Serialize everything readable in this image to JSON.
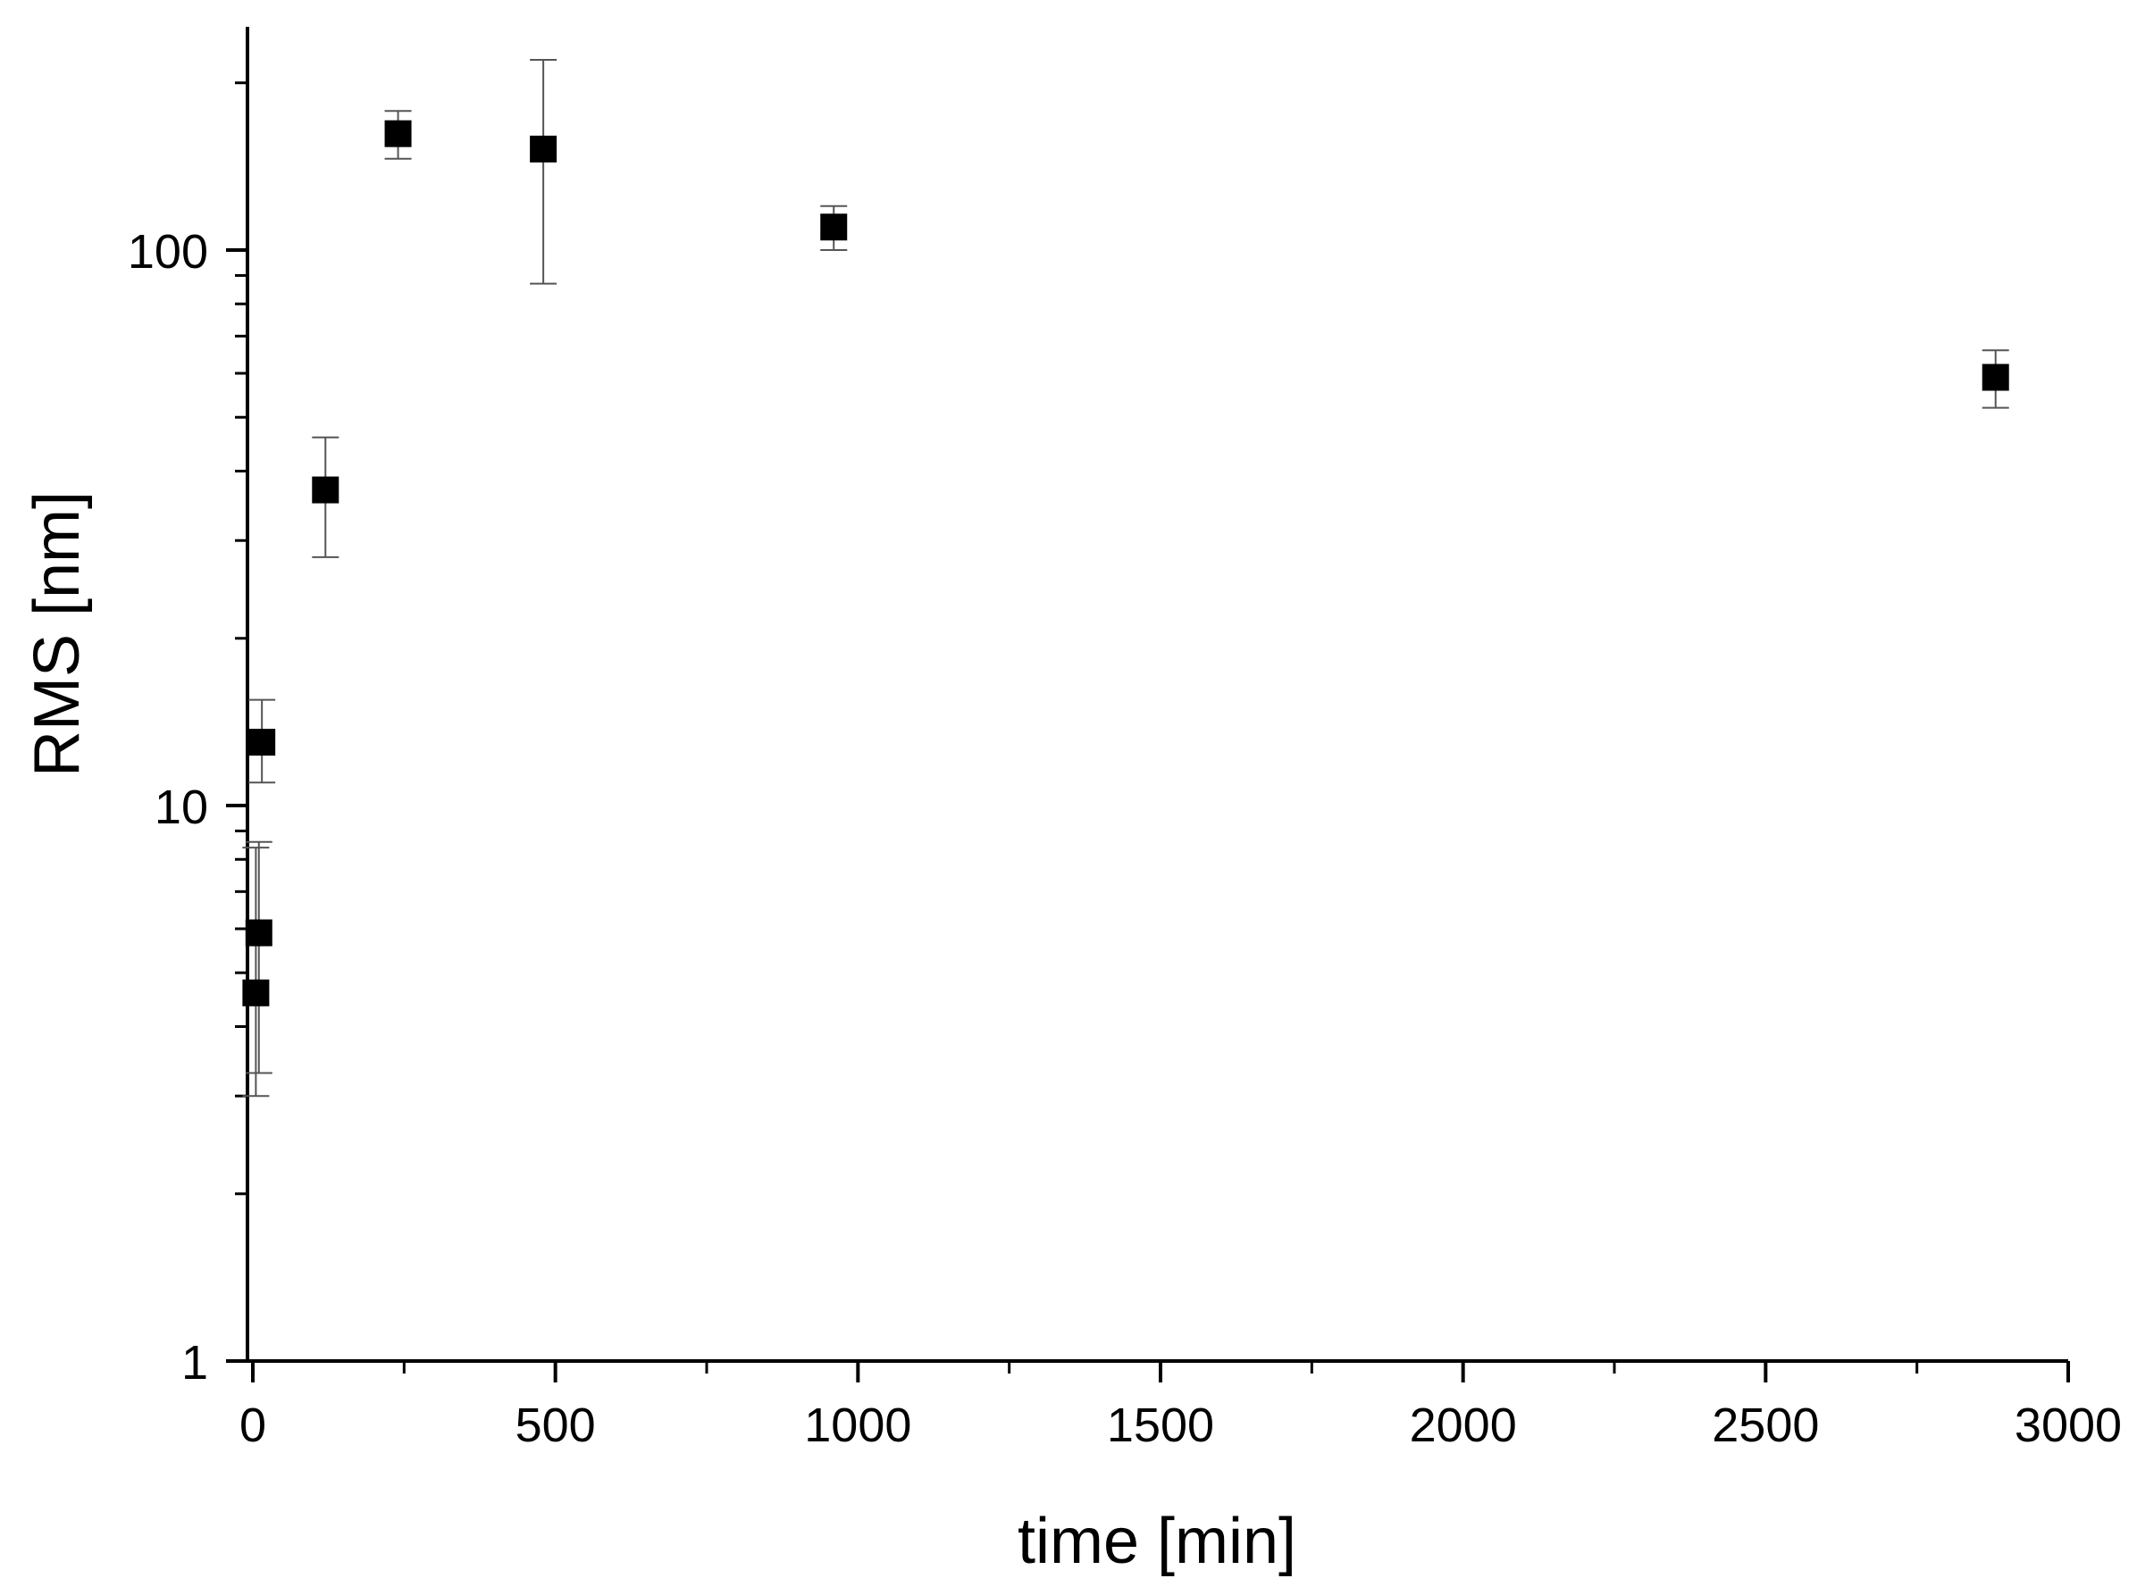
{
  "chart_data": {
    "type": "scatter",
    "title": "",
    "xlabel": "time [min]",
    "ylabel": "RMS [nm]",
    "x_scale": "linear",
    "y_scale": "log",
    "xlim": [
      -30,
      3000
    ],
    "ylim": [
      1,
      250
    ],
    "x_ticks": [
      0,
      500,
      1000,
      1500,
      2000,
      2500,
      3000
    ],
    "x_tick_labels": [
      "0",
      "500",
      "1000",
      "1500",
      "2000",
      "2500",
      "3000"
    ],
    "y_ticks": [
      1,
      10,
      100
    ],
    "y_tick_labels": [
      "1",
      "10",
      "100"
    ],
    "grid": false,
    "legend": "none",
    "marker": "filled-square",
    "marker_color": "#000000",
    "errorbar_color": "#555555",
    "points": [
      {
        "x": 5,
        "y": 4.6,
        "y_low": 3.0,
        "y_high": 8.4
      },
      {
        "x": 10,
        "y": 5.9,
        "y_low": 3.3,
        "y_high": 8.6
      },
      {
        "x": 15,
        "y": 13,
        "y_low": 11,
        "y_high": 15.5
      },
      {
        "x": 120,
        "y": 37,
        "y_low": 28,
        "y_high": 46
      },
      {
        "x": 240,
        "y": 162,
        "y_low": 146,
        "y_high": 178
      },
      {
        "x": 480,
        "y": 152,
        "y_low": 87,
        "y_high": 220
      },
      {
        "x": 960,
        "y": 110,
        "y_low": 100,
        "y_high": 120
      },
      {
        "x": 2880,
        "y": 59,
        "y_low": 52,
        "y_high": 66
      }
    ]
  }
}
